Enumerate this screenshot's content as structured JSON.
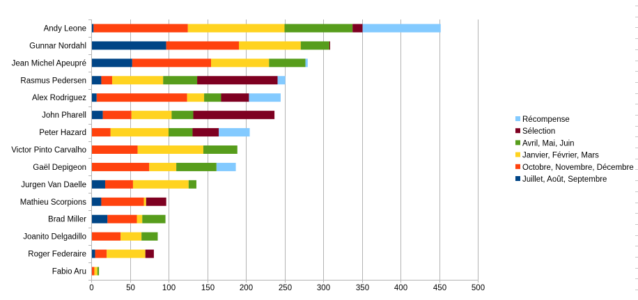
{
  "chart_data": {
    "type": "bar",
    "orientation": "horizontal",
    "stacked": true,
    "grid": true,
    "legend_position": "right",
    "title": "",
    "xlabel": "",
    "ylabel": "",
    "xlim": [
      0,
      500
    ],
    "x_ticks": [
      "0",
      "50",
      "100",
      "150",
      "200",
      "250",
      "300",
      "350",
      "400",
      "450",
      "500"
    ],
    "categories": [
      "Andy Leone",
      "Gunnar Nordahl",
      "Jean Michel Apeupré",
      "Rasmus Pedersen",
      "Alex Rodriguez",
      "John Pharell",
      "Peter Hazard",
      "Victor Pinto Carvalho",
      "Gaël Depigeon",
      "Jurgen Van Daelle",
      "Mathieu Scorpions",
      "Brad Miller",
      "Joanito Delgadillo",
      "Roger Federaire",
      "Fabio Aru"
    ],
    "series": [
      {
        "name": "Juillet, Août, Septembre",
        "color": "#004586",
        "values": [
          3,
          97,
          53,
          13,
          7,
          15,
          0,
          0,
          0,
          18,
          13,
          21,
          0,
          5,
          0
        ]
      },
      {
        "name": "Octobre, Novembre, Décembre",
        "color": "#ff420e",
        "values": [
          122,
          94,
          102,
          14,
          117,
          37,
          25,
          60,
          75,
          36,
          55,
          38,
          38,
          15,
          4
        ]
      },
      {
        "name": "Janvier, Février, Mars",
        "color": "#ffd320",
        "values": [
          125,
          80,
          75,
          66,
          22,
          52,
          75,
          85,
          35,
          72,
          3,
          7,
          27,
          50,
          4
        ]
      },
      {
        "name": "Avril, Mai, Juin",
        "color": "#579d1c",
        "values": [
          88,
          37,
          47,
          44,
          22,
          28,
          31,
          44,
          52,
          10,
          0,
          30,
          21,
          0,
          2
        ]
      },
      {
        "name": "Sélection",
        "color": "#7e0021",
        "values": [
          13,
          1,
          0,
          104,
          36,
          105,
          34,
          0,
          0,
          0,
          26,
          0,
          0,
          11,
          0
        ]
      },
      {
        "name": "Récompense",
        "color": "#83caff",
        "values": [
          101,
          0,
          3,
          10,
          41,
          0,
          40,
          0,
          25,
          0,
          0,
          0,
          0,
          0,
          0
        ]
      }
    ]
  }
}
